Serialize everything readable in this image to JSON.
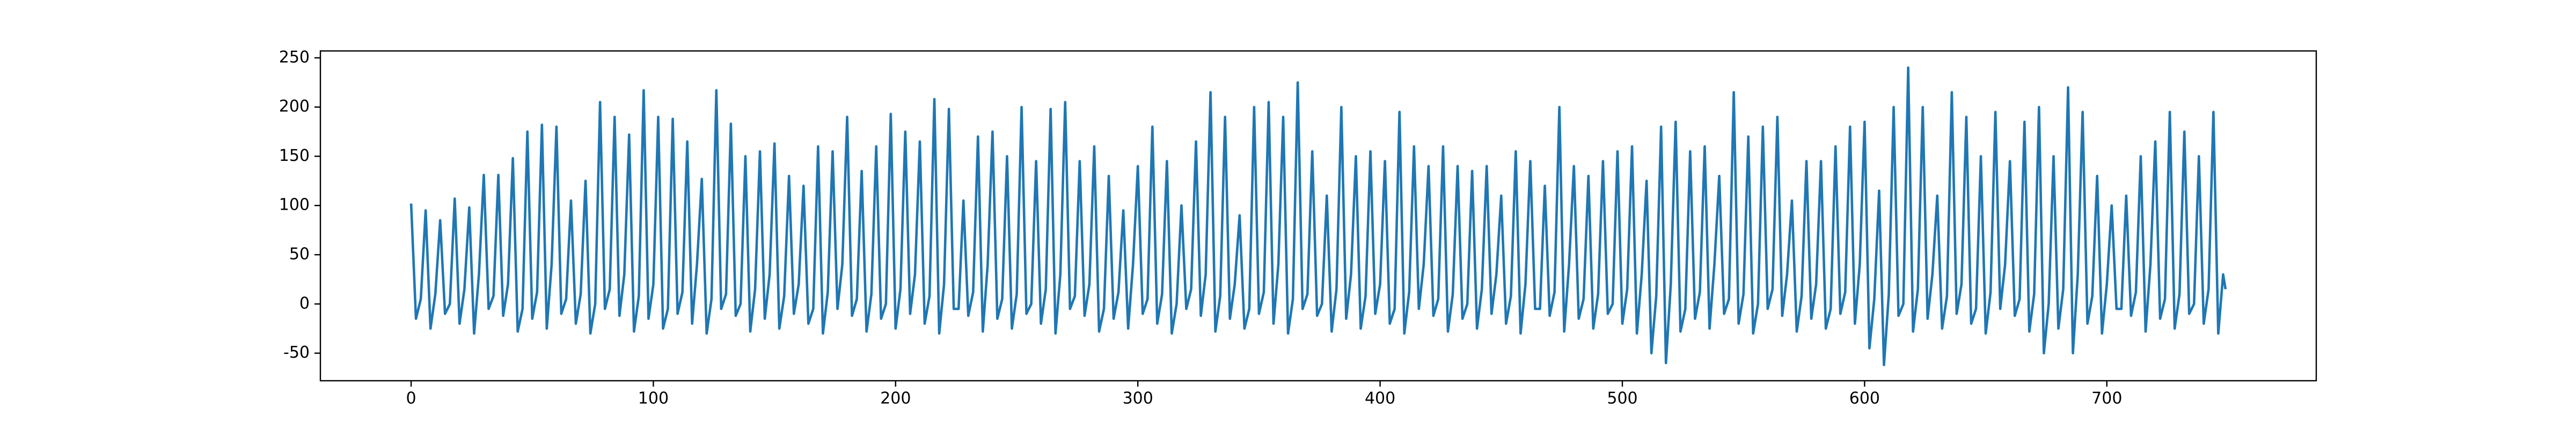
{
  "chart_data": {
    "type": "line",
    "color": "#1f77b4",
    "xlim": [
      -37.45,
      786.45
    ],
    "xticks": [
      0,
      100,
      200,
      300,
      400,
      500,
      600,
      700
    ],
    "ylim": [
      -78,
      257
    ],
    "yticks": [
      -50,
      0,
      50,
      100,
      150,
      200,
      250
    ],
    "x": [
      0,
      2,
      4,
      6,
      8,
      10,
      12,
      14,
      16,
      18,
      20,
      22,
      24,
      26,
      28,
      30,
      32,
      34,
      36,
      38,
      40,
      42,
      44,
      46,
      48,
      50,
      52,
      54,
      56,
      58,
      60,
      62,
      64,
      66,
      68,
      70,
      72,
      74,
      76,
      78,
      80,
      82,
      84,
      86,
      88,
      90,
      92,
      94,
      96,
      98,
      100,
      102,
      104,
      106,
      108,
      110,
      112,
      114,
      116,
      118,
      120,
      122,
      124,
      126,
      128,
      130,
      132,
      134,
      136,
      138,
      140,
      142,
      144,
      146,
      148,
      150,
      152,
      154,
      156,
      158,
      160,
      162,
      164,
      166,
      168,
      170,
      172,
      174,
      176,
      178,
      180,
      182,
      184,
      186,
      188,
      190,
      192,
      194,
      196,
      198,
      200,
      202,
      204,
      206,
      208,
      210,
      212,
      214,
      216,
      218,
      220,
      222,
      224,
      226,
      228,
      230,
      232,
      234,
      236,
      238,
      240,
      242,
      244,
      246,
      248,
      250,
      252,
      254,
      256,
      258,
      260,
      262,
      264,
      266,
      268,
      270,
      272,
      274,
      276,
      278,
      280,
      282,
      284,
      286,
      288,
      290,
      292,
      294,
      296,
      298,
      300,
      302,
      304,
      306,
      308,
      310,
      312,
      314,
      316,
      318,
      320,
      322,
      324,
      326,
      328,
      330,
      332,
      334,
      336,
      338,
      340,
      342,
      344,
      346,
      348,
      350,
      352,
      354,
      356,
      358,
      360,
      362,
      364,
      366,
      368,
      370,
      372,
      374,
      376,
      378,
      380,
      382,
      384,
      386,
      388,
      390,
      392,
      394,
      396,
      398,
      400,
      402,
      404,
      406,
      408,
      410,
      412,
      414,
      416,
      418,
      420,
      422,
      424,
      426,
      428,
      430,
      432,
      434,
      436,
      438,
      440,
      442,
      444,
      446,
      448,
      450,
      452,
      454,
      456,
      458,
      460,
      462,
      464,
      466,
      468,
      470,
      472,
      474,
      476,
      478,
      480,
      482,
      484,
      486,
      488,
      490,
      492,
      494,
      496,
      498,
      500,
      502,
      504,
      506,
      508,
      510,
      512,
      514,
      516,
      518,
      520,
      522,
      524,
      526,
      528,
      530,
      532,
      534,
      536,
      538,
      540,
      542,
      544,
      546,
      548,
      550,
      552,
      554,
      556,
      558,
      560,
      562,
      564,
      566,
      568,
      570,
      572,
      574,
      576,
      578,
      580,
      582,
      584,
      586,
      588,
      590,
      592,
      594,
      596,
      598,
      600,
      602,
      604,
      606,
      608,
      610,
      612,
      614,
      616,
      618,
      620,
      622,
      624,
      626,
      628,
      630,
      632,
      634,
      636,
      638,
      640,
      642,
      644,
      646,
      648,
      650,
      652,
      654,
      656,
      658,
      660,
      662,
      664,
      666,
      668,
      670,
      672,
      674,
      676,
      678,
      680,
      682,
      684,
      686,
      688,
      690,
      692,
      694,
      696,
      698,
      700,
      702,
      704,
      706,
      708,
      710,
      712,
      714,
      716,
      718,
      720,
      722,
      724,
      726,
      728,
      730,
      732,
      734,
      736,
      738,
      740,
      742,
      744,
      746,
      748,
      749
    ],
    "values": [
      102,
      -15,
      5,
      95,
      -25,
      10,
      85,
      -10,
      0,
      107,
      -20,
      15,
      98,
      -30,
      30,
      131,
      -5,
      8,
      131,
      -12,
      20,
      148,
      -28,
      -5,
      175,
      -15,
      12,
      182,
      -25,
      40,
      180,
      -10,
      5,
      105,
      -20,
      10,
      125,
      -30,
      0,
      205,
      -5,
      15,
      190,
      -12,
      30,
      172,
      -28,
      8,
      217,
      -15,
      20,
      190,
      -25,
      -5,
      188,
      -10,
      12,
      165,
      -20,
      40,
      127,
      -30,
      5,
      217,
      -5,
      10,
      183,
      -12,
      0,
      150,
      -28,
      15,
      155,
      -15,
      30,
      163,
      -25,
      8,
      130,
      -10,
      20,
      120,
      -20,
      -5,
      160,
      -30,
      12,
      155,
      -5,
      40,
      190,
      -12,
      5,
      135,
      -28,
      10,
      160,
      -15,
      0,
      193,
      -25,
      15,
      175,
      -10,
      30,
      165,
      -20,
      8,
      208,
      -30,
      20,
      198,
      -5,
      -5,
      105,
      -12,
      12,
      170,
      -28,
      40,
      175,
      -15,
      5,
      150,
      -25,
      10,
      200,
      -10,
      0,
      145,
      -20,
      15,
      198,
      -30,
      30,
      205,
      -5,
      8,
      145,
      -12,
      20,
      160,
      -28,
      -5,
      130,
      -15,
      12,
      95,
      -25,
      40,
      140,
      -10,
      5,
      180,
      -20,
      10,
      145,
      -30,
      0,
      100,
      -5,
      15,
      165,
      -12,
      30,
      215,
      -28,
      8,
      190,
      -15,
      20,
      90,
      -25,
      -5,
      200,
      -10,
      12,
      205,
      -20,
      40,
      190,
      -30,
      5,
      225,
      -5,
      10,
      155,
      -12,
      0,
      110,
      -28,
      15,
      200,
      -15,
      30,
      150,
      -25,
      8,
      155,
      -10,
      20,
      145,
      -20,
      -5,
      195,
      -30,
      12,
      160,
      -5,
      40,
      140,
      -12,
      5,
      160,
      -28,
      10,
      140,
      -15,
      0,
      135,
      -25,
      15,
      140,
      -10,
      30,
      110,
      -20,
      8,
      155,
      -30,
      20,
      145,
      -5,
      -5,
      120,
      -12,
      12,
      200,
      -28,
      40,
      140,
      -15,
      5,
      130,
      -25,
      10,
      145,
      -10,
      0,
      155,
      -20,
      15,
      160,
      -30,
      30,
      125,
      -50,
      8,
      180,
      -60,
      20,
      185,
      -28,
      -5,
      155,
      -15,
      12,
      160,
      -25,
      40,
      130,
      -10,
      5,
      215,
      -20,
      10,
      170,
      -30,
      0,
      180,
      -5,
      15,
      190,
      -12,
      30,
      105,
      -28,
      8,
      145,
      -15,
      20,
      145,
      -25,
      -5,
      160,
      -10,
      12,
      180,
      -20,
      40,
      185,
      -45,
      5,
      115,
      -62,
      10,
      200,
      -12,
      0,
      240,
      -28,
      15,
      200,
      -15,
      30,
      110,
      -25,
      8,
      215,
      -10,
      20,
      190,
      -20,
      -5,
      150,
      -30,
      12,
      195,
      -5,
      40,
      145,
      -12,
      5,
      185,
      -28,
      10,
      200,
      -50,
      0,
      150,
      -25,
      15,
      220,
      -50,
      30,
      195,
      -20,
      8,
      130,
      -30,
      20,
      100,
      -5,
      -5,
      110,
      -12,
      12,
      150,
      -28,
      40,
      165,
      -15,
      5,
      195,
      -25,
      10,
      175,
      -10,
      0,
      150,
      -20,
      15,
      195,
      -30,
      30,
      15
    ]
  }
}
